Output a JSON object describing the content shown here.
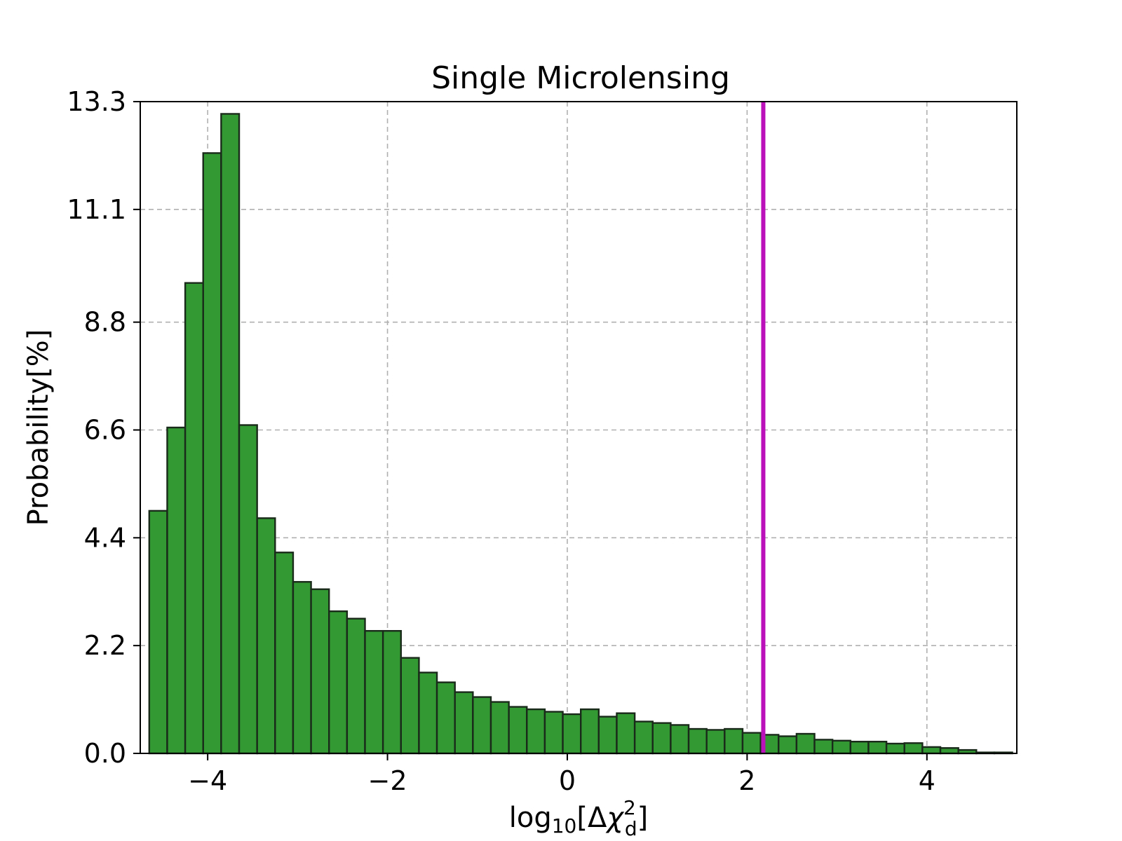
{
  "chart_data": {
    "type": "bar",
    "title": "Single Microlensing",
    "xlabel": {
      "base": "log",
      "sub": "10",
      "open": "[Δ",
      "chi": "χ",
      "sup": "2",
      "chisub": "d",
      "close": "]"
    },
    "ylabel": "Probability[%]",
    "xlim": [
      -4.75,
      5.0
    ],
    "ylim": [
      0.0,
      13.3
    ],
    "xticks": [
      -4,
      -2,
      0,
      2,
      4
    ],
    "xtick_labels": [
      "−4",
      "−2",
      "0",
      "2",
      "4"
    ],
    "yticks": [
      0.0,
      2.2,
      4.4,
      6.6,
      8.8,
      11.1,
      13.3
    ],
    "ytick_labels": [
      "0.0",
      "2.2",
      "4.4",
      "6.6",
      "8.8",
      "11.1",
      "13.3"
    ],
    "grid": true,
    "bar_color": "#339933",
    "bar_edge_color": "#1a2a1a",
    "bin_width": 0.2,
    "bin_start": -4.65,
    "values": [
      4.95,
      6.65,
      9.6,
      12.25,
      13.05,
      6.7,
      4.8,
      4.1,
      3.5,
      3.35,
      2.9,
      2.75,
      2.5,
      2.5,
      1.95,
      1.65,
      1.45,
      1.25,
      1.15,
      1.05,
      0.95,
      0.9,
      0.85,
      0.8,
      0.9,
      0.75,
      0.82,
      0.65,
      0.62,
      0.58,
      0.5,
      0.48,
      0.5,
      0.42,
      0.38,
      0.35,
      0.4,
      0.28,
      0.26,
      0.24,
      0.24,
      0.2,
      0.21,
      0.13,
      0.11,
      0.07,
      0.02,
      0.02
    ],
    "vline": {
      "x": 2.18,
      "color": "#bb11bb"
    }
  }
}
